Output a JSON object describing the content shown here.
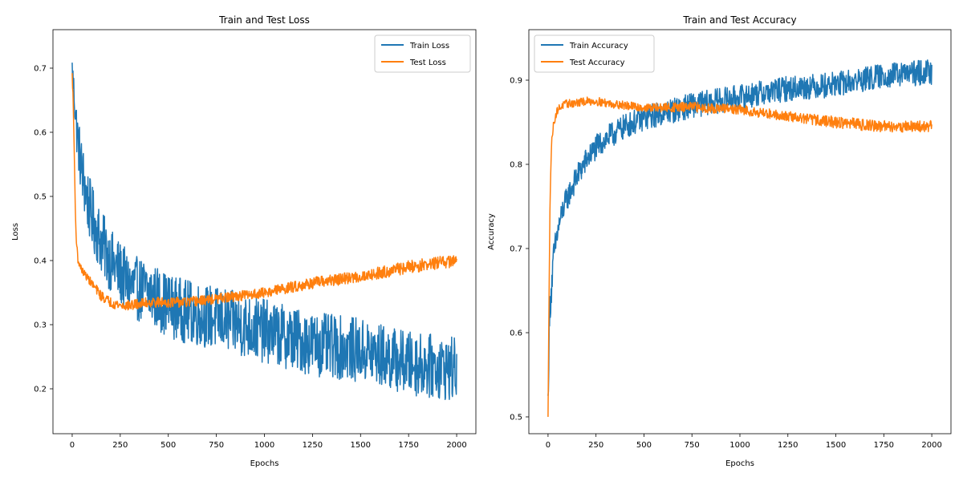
{
  "colors": {
    "train": "#1f77b4",
    "test": "#ff7f0e"
  },
  "chart_data": [
    {
      "type": "line",
      "title": "Train and Test Loss",
      "xlabel": "Epochs",
      "ylabel": "Loss",
      "xlim": [
        -100,
        2100
      ],
      "ylim": [
        0.13,
        0.76
      ],
      "xticks": [
        0,
        250,
        500,
        750,
        1000,
        1250,
        1500,
        1750,
        2000
      ],
      "xtick_labels": [
        "0",
        "250",
        "500",
        "750",
        "1000",
        "1250",
        "1500",
        "1750",
        "2000"
      ],
      "yticks": [
        0.2,
        0.3,
        0.4,
        0.5,
        0.6,
        0.7
      ],
      "ytick_labels": [
        "0.2",
        "0.3",
        "0.4",
        "0.5",
        "0.6",
        "0.7"
      ],
      "legend": "top-right",
      "grid": false,
      "series": [
        {
          "name": "Train Loss",
          "x": [
            0,
            25,
            50,
            75,
            100,
            150,
            200,
            250,
            300,
            400,
            500,
            600,
            750,
            1000,
            1250,
            1500,
            1750,
            2000
          ],
          "y": [
            0.7,
            0.6,
            0.54,
            0.5,
            0.47,
            0.43,
            0.4,
            0.38,
            0.36,
            0.35,
            0.33,
            0.32,
            0.31,
            0.29,
            0.27,
            0.26,
            0.24,
            0.23
          ],
          "noise": [
            0.02,
            0.04,
            0.05,
            0.05,
            0.05,
            0.05,
            0.05,
            0.05,
            0.05,
            0.05,
            0.05,
            0.05,
            0.05,
            0.05,
            0.05,
            0.05,
            0.05,
            0.05
          ]
        },
        {
          "name": "Test Loss",
          "x": [
            0,
            5,
            10,
            15,
            20,
            30,
            50,
            100,
            150,
            200,
            250,
            300,
            400,
            500,
            600,
            750,
            1000,
            1250,
            1500,
            1750,
            2000
          ],
          "y": [
            0.69,
            0.65,
            0.58,
            0.5,
            0.44,
            0.4,
            0.385,
            0.365,
            0.345,
            0.335,
            0.33,
            0.33,
            0.335,
            0.335,
            0.335,
            0.34,
            0.35,
            0.365,
            0.375,
            0.39,
            0.4
          ],
          "noise": [
            0.005,
            0.005,
            0.005,
            0.005,
            0.005,
            0.005,
            0.005,
            0.007,
            0.008,
            0.008,
            0.008,
            0.008,
            0.008,
            0.008,
            0.008,
            0.008,
            0.008,
            0.009,
            0.009,
            0.01,
            0.01
          ]
        }
      ]
    },
    {
      "type": "line",
      "title": "Train and Test Accuracy",
      "xlabel": "Epochs",
      "ylabel": "Accuracy",
      "xlim": [
        -100,
        2100
      ],
      "ylim": [
        0.48,
        0.96
      ],
      "xticks": [
        0,
        250,
        500,
        750,
        1000,
        1250,
        1500,
        1750,
        2000
      ],
      "xtick_labels": [
        "0",
        "250",
        "500",
        "750",
        "1000",
        "1250",
        "1500",
        "1750",
        "2000"
      ],
      "yticks": [
        0.5,
        0.6,
        0.7,
        0.8,
        0.9
      ],
      "ytick_labels": [
        "0.5",
        "0.6",
        "0.7",
        "0.8",
        "0.9"
      ],
      "legend": "top-left",
      "grid": false,
      "series": [
        {
          "name": "Train Accuracy",
          "x": [
            0,
            5,
            10,
            20,
            30,
            50,
            75,
            100,
            150,
            200,
            250,
            300,
            400,
            500,
            750,
            1000,
            1250,
            1500,
            1750,
            2000
          ],
          "y": [
            0.52,
            0.58,
            0.63,
            0.66,
            0.69,
            0.72,
            0.745,
            0.76,
            0.785,
            0.805,
            0.82,
            0.83,
            0.845,
            0.855,
            0.87,
            0.88,
            0.89,
            0.895,
            0.905,
            0.91
          ],
          "noise": [
            0.01,
            0.02,
            0.02,
            0.02,
            0.02,
            0.015,
            0.015,
            0.015,
            0.015,
            0.015,
            0.015,
            0.015,
            0.015,
            0.015,
            0.015,
            0.015,
            0.015,
            0.015,
            0.015,
            0.015
          ]
        },
        {
          "name": "Test Accuracy",
          "x": [
            0,
            5,
            10,
            15,
            20,
            30,
            50,
            75,
            100,
            150,
            200,
            250,
            300,
            400,
            500,
            750,
            1000,
            1250,
            1500,
            1750,
            2000
          ],
          "y": [
            0.5,
            0.64,
            0.75,
            0.8,
            0.83,
            0.85,
            0.865,
            0.87,
            0.872,
            0.873,
            0.875,
            0.875,
            0.873,
            0.87,
            0.867,
            0.868,
            0.865,
            0.857,
            0.85,
            0.845,
            0.845
          ],
          "noise": [
            0.0,
            0.004,
            0.004,
            0.004,
            0.004,
            0.004,
            0.005,
            0.005,
            0.005,
            0.005,
            0.005,
            0.005,
            0.005,
            0.005,
            0.005,
            0.006,
            0.006,
            0.006,
            0.007,
            0.007,
            0.007
          ]
        }
      ]
    }
  ]
}
